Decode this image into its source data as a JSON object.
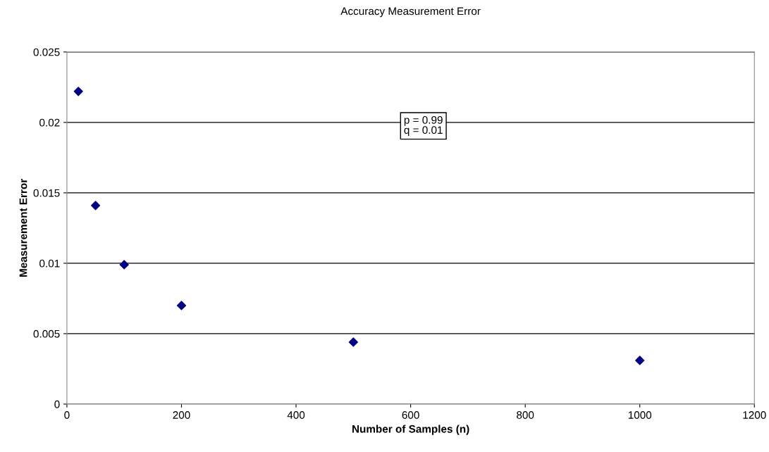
{
  "chart_data": {
    "type": "scatter",
    "title": "Accuracy Measurement Error",
    "xlabel": "Number of Samples (n)",
    "ylabel": "Measurement Error",
    "x": [
      20,
      50,
      100,
      200,
      500,
      1000
    ],
    "values": [
      0.0222,
      0.0141,
      0.0099,
      0.007,
      0.0044,
      0.0031
    ],
    "color": "#000080",
    "marker": "diamond",
    "xlim": [
      0,
      1200
    ],
    "xticks": [
      0,
      200,
      400,
      600,
      800,
      1000,
      1200
    ],
    "ylim": [
      0,
      0.025
    ],
    "yticks": [
      0,
      0.005,
      0.01,
      0.015,
      0.02,
      0.025
    ],
    "grid": "y",
    "legend": false,
    "annotations": [
      "p = 0.99\nq = 0.01"
    ]
  }
}
